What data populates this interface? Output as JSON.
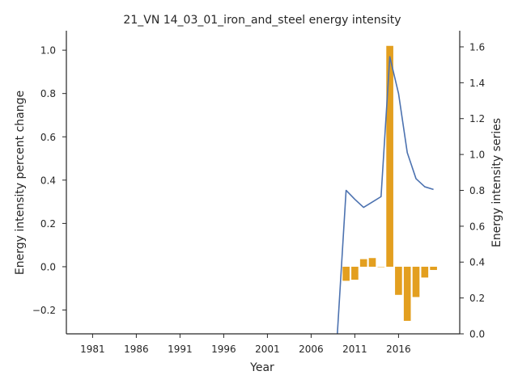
{
  "chart_data": {
    "type": "bar+line",
    "title": "21_VN 14_03_01_iron_and_steel energy intensity",
    "xlabel": "Year",
    "ylabel_left": "Energy intensity percent change",
    "ylabel_right": "Energy intensity series",
    "x_ticks": [
      1981,
      1986,
      1991,
      1996,
      2001,
      2006,
      2011,
      2016
    ],
    "y_left_ticks": [
      -0.2,
      0.0,
      0.2,
      0.4,
      0.6,
      0.8,
      1.0
    ],
    "y_right_ticks": [
      0.0,
      0.2,
      0.4,
      0.6,
      0.8,
      1.0,
      1.2,
      1.4,
      1.6
    ],
    "xlim": [
      1978,
      2023
    ],
    "ylim_left": [
      -0.31,
      1.09
    ],
    "ylim_right": [
      0.0,
      1.69
    ],
    "grid": false,
    "colors": {
      "bars": "#e39f1f",
      "line": "#4c72b0",
      "axes": "#262626"
    },
    "bar_series": {
      "axis": "left",
      "x": [
        2010,
        2011,
        2012,
        2013,
        2014,
        2015,
        2016,
        2017,
        2018,
        2019,
        2020
      ],
      "values": [
        -0.065,
        -0.06,
        0.035,
        0.04,
        0.0,
        1.02,
        -0.13,
        -0.25,
        -0.14,
        -0.05,
        -0.015
      ]
    },
    "line_series": {
      "axis": "right",
      "x": [
        2009,
        2010,
        2011,
        2012,
        2013,
        2014,
        2015,
        2016,
        2017,
        2018,
        2019,
        2020
      ],
      "values": [
        0.0,
        0.8,
        0.75,
        0.705,
        0.735,
        0.765,
        1.545,
        1.34,
        1.01,
        0.865,
        0.82,
        0.805
      ]
    }
  }
}
